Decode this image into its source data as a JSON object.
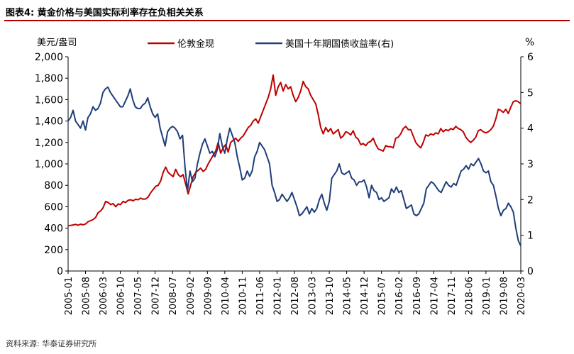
{
  "header": {
    "title": "图表4:   黄金价格与美国实际利率存在负相关关系"
  },
  "source": "资料来源: 华泰证券研究所",
  "colors": {
    "gold": "#c00000",
    "yield": "#1f3e7a",
    "accent": "#b20000"
  },
  "chart_data": {
    "type": "line",
    "title": "图表4:   黄金价格与美国实际利率存在负相关关系",
    "ylabel_left": "美元/盎司",
    "ylabel_right": "%",
    "ylim_left": [
      0,
      2000
    ],
    "ylim_right": [
      0,
      6
    ],
    "yticks_left": [
      "0",
      "200",
      "400",
      "600",
      "800",
      "1,000",
      "1,200",
      "1,400",
      "1,600",
      "1,800",
      "2,000"
    ],
    "yticks_right": [
      "0",
      "1",
      "2",
      "3",
      "4",
      "5",
      "6"
    ],
    "xticks": [
      "2005-01",
      "2005-08",
      "2006-03",
      "2006-10",
      "2007-05",
      "2007-12",
      "2008-07",
      "2009-02",
      "2009-09",
      "2010-04",
      "2010-11",
      "2011-06",
      "2012-01",
      "2012-08",
      "2013-03",
      "2013-10",
      "2014-05",
      "2014-12",
      "2015-07",
      "2016-02",
      "2016-09",
      "2017-04",
      "2017-11",
      "2018-06",
      "2019-01",
      "2019-08",
      "2020-03"
    ],
    "legend": [
      "伦敦金现",
      "美国十年期国债收益率(右)"
    ],
    "series": [
      {
        "name": "伦敦金现",
        "axis": "left",
        "color": "#c00000",
        "values": [
          422,
          426,
          430,
          435,
          427,
          437,
          431,
          440,
          460,
          470,
          480,
          500,
          545,
          560,
          590,
          650,
          640,
          620,
          630,
          600,
          625,
          620,
          650,
          640,
          660,
          665,
          655,
          670,
          665,
          680,
          670,
          672,
          690,
          730,
          760,
          790,
          800,
          840,
          920,
          970,
          920,
          900,
          880,
          950,
          900,
          880,
          900,
          810,
          720,
          800,
          880,
          920,
          940,
          960,
          930,
          950,
          1000,
          1040,
          1080,
          1120,
          1200,
          1100,
          1150,
          1180,
          1110,
          1200,
          1220,
          1240,
          1210,
          1240,
          1260,
          1300,
          1340,
          1360,
          1400,
          1420,
          1380,
          1440,
          1500,
          1560,
          1620,
          1700,
          1830,
          1640,
          1720,
          1760,
          1680,
          1740,
          1700,
          1720,
          1640,
          1580,
          1620,
          1680,
          1770,
          1720,
          1700,
          1640,
          1600,
          1560,
          1460,
          1340,
          1280,
          1340,
          1300,
          1330,
          1280,
          1300,
          1320,
          1240,
          1260,
          1300,
          1290,
          1270,
          1310,
          1250,
          1230,
          1180,
          1190,
          1170,
          1200,
          1210,
          1240,
          1180,
          1140,
          1130,
          1120,
          1170,
          1160,
          1160,
          1150,
          1240,
          1250,
          1280,
          1330,
          1350,
          1320,
          1320,
          1260,
          1200,
          1170,
          1150,
          1200,
          1270,
          1260,
          1280,
          1270,
          1290,
          1280,
          1330,
          1300,
          1320,
          1310,
          1330,
          1320,
          1350,
          1330,
          1320,
          1300,
          1250,
          1220,
          1200,
          1220,
          1250,
          1310,
          1320,
          1300,
          1290,
          1300,
          1320,
          1350,
          1420,
          1510,
          1500,
          1480,
          1510,
          1470,
          1530,
          1580,
          1590,
          1580,
          1560
        ]
      },
      {
        "name": "美国十年期国债收益率(右)",
        "axis": "right",
        "color": "#1f3e7a",
        "values": [
          4.2,
          4.3,
          4.5,
          4.2,
          4.1,
          4.0,
          4.2,
          3.95,
          4.3,
          4.4,
          4.6,
          4.5,
          4.55,
          4.7,
          5.0,
          5.1,
          5.15,
          5.0,
          4.9,
          4.8,
          4.7,
          4.6,
          4.6,
          4.75,
          4.9,
          5.1,
          4.8,
          4.6,
          4.55,
          4.55,
          4.65,
          4.7,
          4.85,
          4.6,
          4.4,
          4.3,
          4.4,
          4.0,
          3.75,
          3.5,
          3.9,
          4.0,
          4.05,
          4.0,
          3.9,
          3.7,
          3.8,
          2.9,
          2.25,
          2.8,
          2.5,
          2.6,
          3.0,
          3.3,
          3.55,
          3.7,
          3.5,
          3.3,
          3.35,
          3.2,
          3.4,
          3.85,
          3.5,
          3.3,
          3.7,
          4.0,
          3.8,
          3.6,
          3.2,
          2.9,
          2.55,
          2.6,
          2.8,
          2.65,
          2.8,
          3.2,
          3.35,
          3.6,
          3.5,
          3.4,
          3.2,
          3.0,
          2.4,
          2.2,
          1.95,
          2.0,
          2.15,
          2.05,
          1.95,
          2.05,
          2.2,
          2.0,
          1.8,
          1.55,
          1.6,
          1.7,
          1.8,
          1.6,
          1.75,
          1.65,
          1.75,
          2.0,
          2.15,
          1.9,
          1.7,
          1.95,
          2.6,
          2.7,
          2.8,
          3.0,
          2.75,
          2.7,
          2.75,
          2.8,
          2.6,
          2.55,
          2.4,
          2.5,
          2.5,
          2.55,
          2.35,
          2.05,
          2.4,
          2.25,
          2.2,
          2.0,
          2.05,
          1.95,
          2.0,
          2.05,
          2.3,
          2.2,
          2.35,
          2.2,
          2.25,
          2.0,
          1.75,
          1.8,
          1.85,
          1.6,
          1.55,
          1.6,
          1.75,
          1.9,
          2.3,
          2.4,
          2.5,
          2.45,
          2.35,
          2.25,
          2.2,
          2.35,
          2.5,
          2.4,
          2.35,
          2.45,
          2.4,
          2.6,
          2.8,
          2.85,
          2.95,
          2.85,
          3.0,
          2.95,
          3.05,
          3.15,
          3.0,
          2.8,
          2.75,
          2.8,
          2.5,
          2.4,
          2.1,
          1.75,
          1.55,
          1.7,
          1.75,
          1.9,
          1.8,
          1.65,
          1.2,
          0.85,
          0.7
        ]
      }
    ]
  }
}
